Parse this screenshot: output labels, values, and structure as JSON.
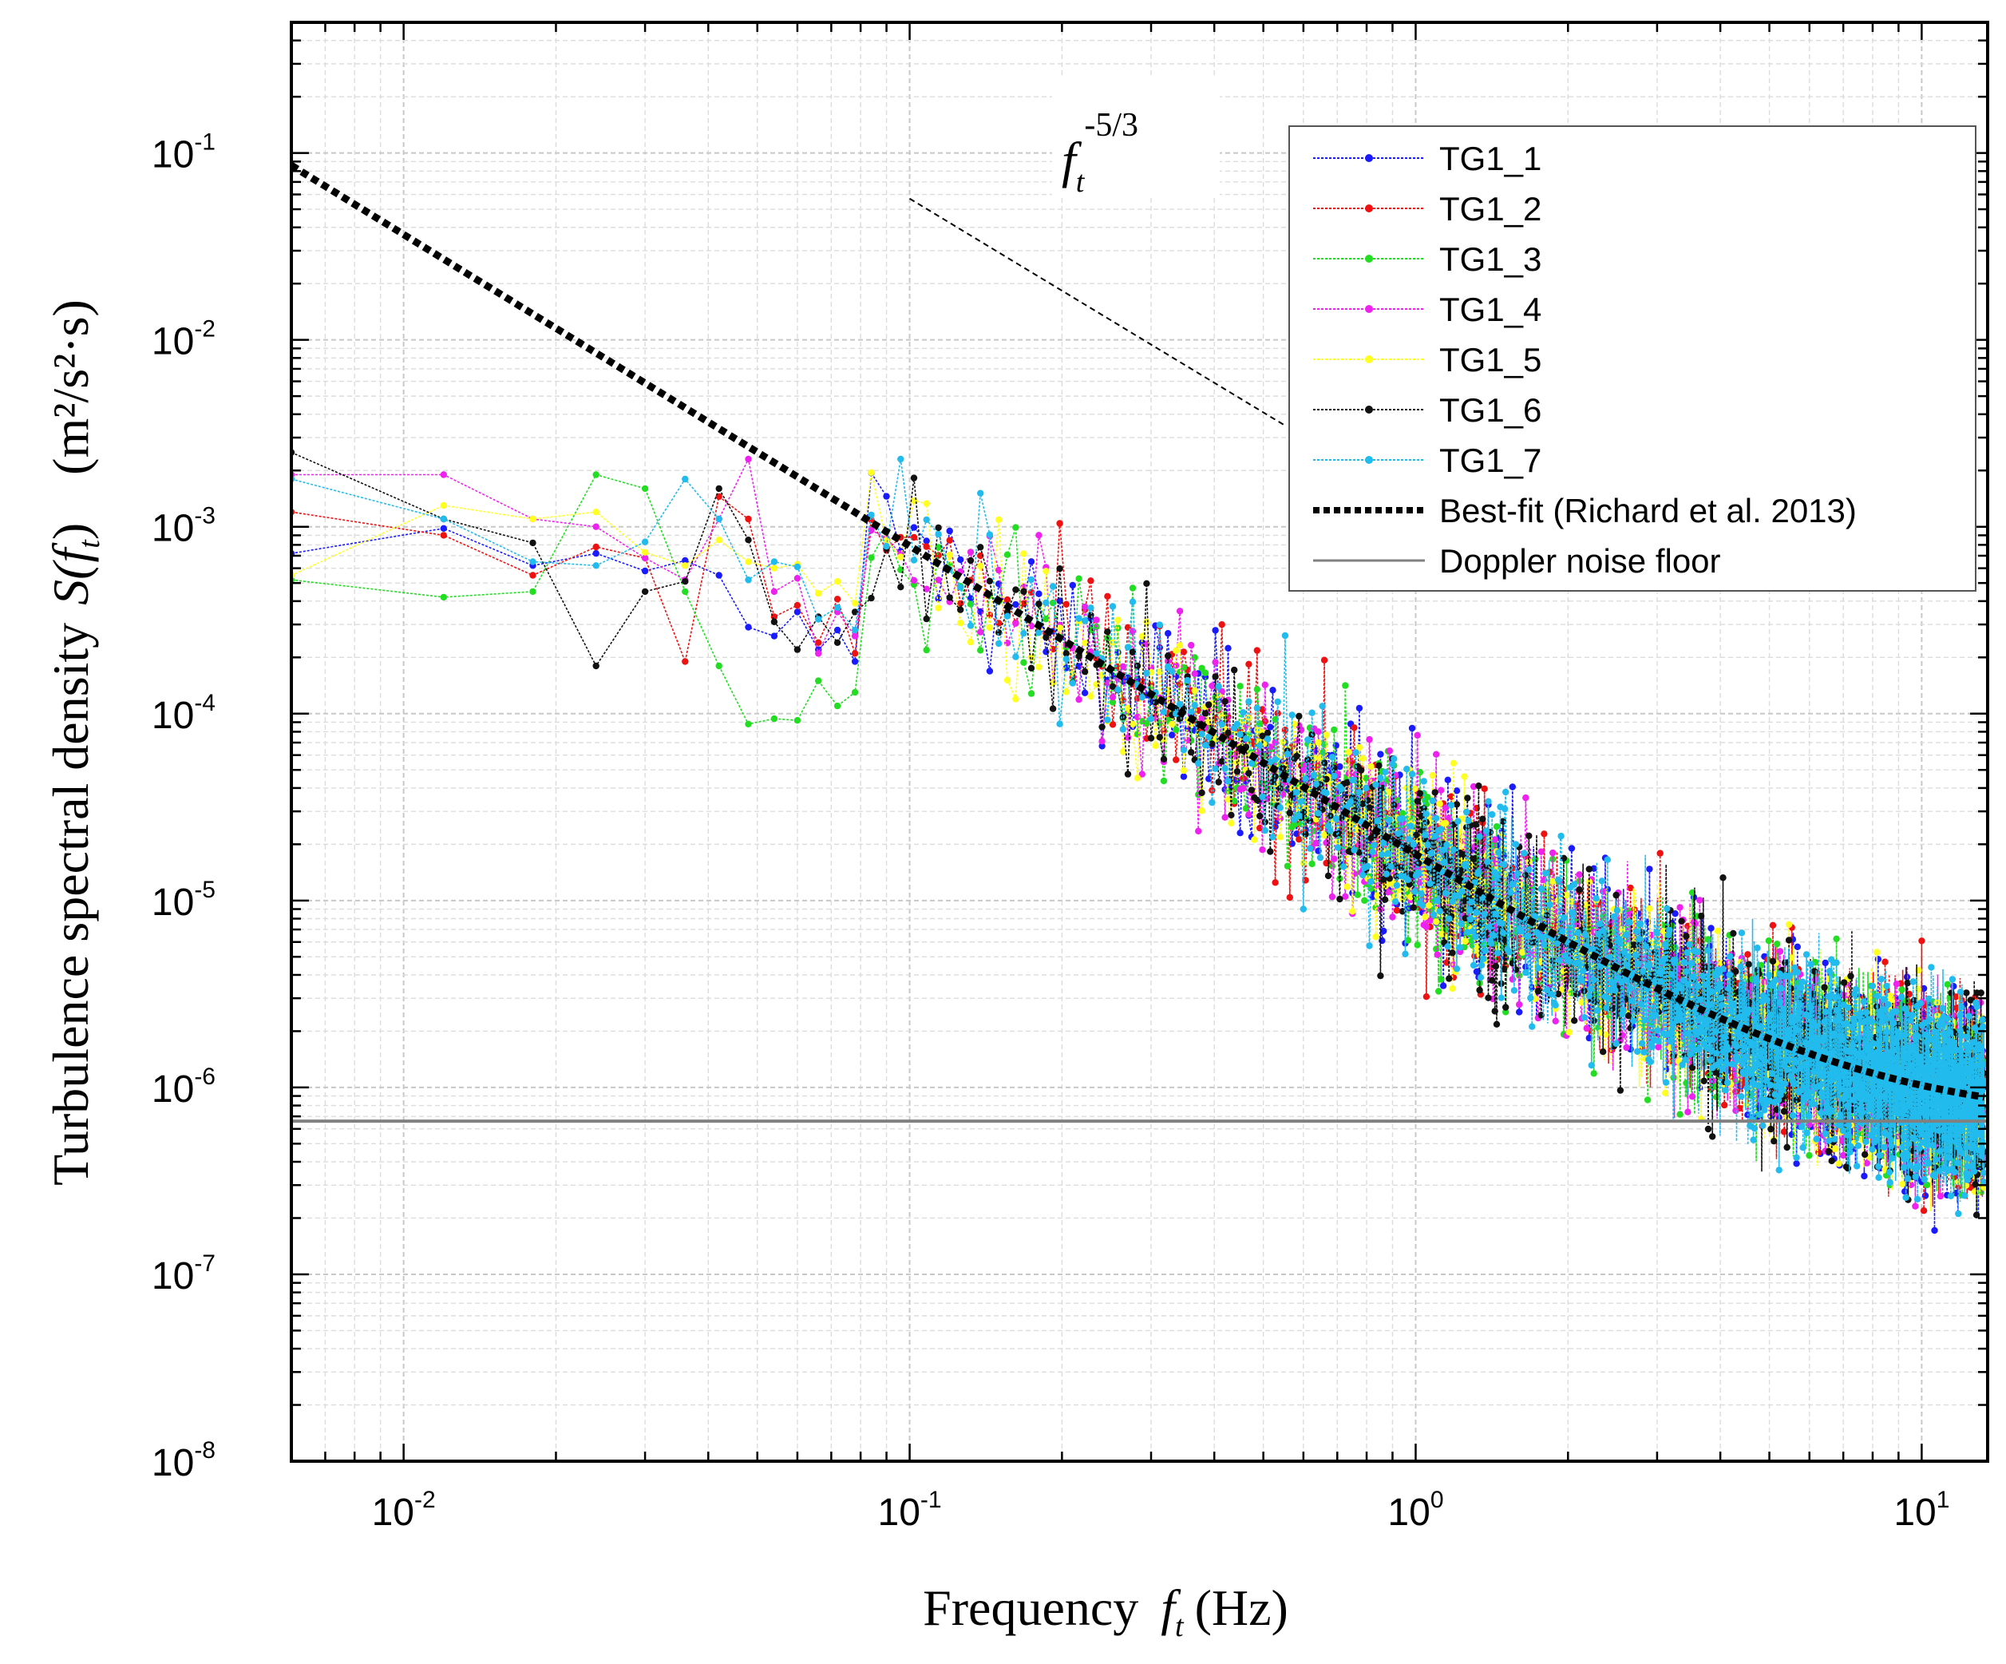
{
  "chart_data": {
    "type": "scatter",
    "x_scale": "log",
    "y_scale": "log",
    "xlim": [
      0.006,
      13.5
    ],
    "ylim": [
      1e-08,
      0.5
    ],
    "grid": true,
    "legend_position": "top-right",
    "x_ticks": [
      {
        "value": 0.01,
        "base": "10",
        "exp": "-2"
      },
      {
        "value": 0.1,
        "base": "10",
        "exp": "-1"
      },
      {
        "value": 1,
        "base": "10",
        "exp": "0"
      },
      {
        "value": 10,
        "base": "10",
        "exp": "1"
      }
    ],
    "y_ticks": [
      {
        "value": 0.1,
        "base": "10",
        "exp": "-1"
      },
      {
        "value": 0.01,
        "base": "10",
        "exp": "-2"
      },
      {
        "value": 0.001,
        "base": "10",
        "exp": "-3"
      },
      {
        "value": 0.0001,
        "base": "10",
        "exp": "-4"
      },
      {
        "value": 1e-05,
        "base": "10",
        "exp": "-5"
      },
      {
        "value": 1e-06,
        "base": "10",
        "exp": "-6"
      },
      {
        "value": 1e-07,
        "base": "10",
        "exp": "-7"
      },
      {
        "value": 1e-08,
        "base": "10",
        "exp": "-8"
      }
    ],
    "xlabel": {
      "word": "Frequency",
      "sym": "f",
      "sub": "t",
      "unit": "(Hz)"
    },
    "ylabel": {
      "word": "Turbulence spectral density",
      "sym": "S(f",
      "sub": "t",
      "close": ")",
      "unit": "(m²/s²·s)"
    },
    "annotation": {
      "base": "f",
      "sub": "t",
      "exp": "-5/3"
    },
    "reference_slope": {
      "slope": -1.6667,
      "x_start": 0.1,
      "y_start": 0.057,
      "x_end": 0.55,
      "y_end": 0.0035
    },
    "best_fit": {
      "name": "Best-fit (Richard et al. 2013)",
      "A": 1.7e-05,
      "n": 1.6667,
      "noise": 6.6e-07,
      "x_start": 0.006,
      "x_end": 13.3
    },
    "noise_floor": {
      "name": "Doppler noise floor",
      "value": 6.6e-07
    },
    "series": [
      {
        "name": "TG1_1",
        "color": "#1a1aff",
        "low_freq": [
          [
            0.006,
            0.00072
          ],
          [
            0.012,
            0.00098
          ],
          [
            0.018,
            0.00062
          ],
          [
            0.024,
            0.00072
          ],
          [
            0.03,
            0.00058
          ],
          [
            0.036,
            0.00066
          ],
          [
            0.042,
            0.00055
          ],
          [
            0.048,
            0.00029
          ],
          [
            0.054,
            0.00026
          ],
          [
            0.06,
            0.00035
          ],
          [
            0.066,
            0.00022
          ],
          [
            0.072,
            0.00028
          ],
          [
            0.078,
            0.00019
          ]
        ]
      },
      {
        "name": "TG1_2",
        "color": "#ee1111",
        "low_freq": [
          [
            0.006,
            0.0012
          ],
          [
            0.012,
            0.0009
          ],
          [
            0.018,
            0.00055
          ],
          [
            0.024,
            0.00078
          ],
          [
            0.03,
            0.00068
          ],
          [
            0.036,
            0.00019
          ],
          [
            0.042,
            0.00145
          ],
          [
            0.048,
            0.0011
          ],
          [
            0.054,
            0.00033
          ],
          [
            0.06,
            0.00038
          ],
          [
            0.066,
            0.00024
          ],
          [
            0.072,
            0.00041
          ],
          [
            0.078,
            0.00021
          ]
        ]
      },
      {
        "name": "TG1_3",
        "color": "#22dd22",
        "low_freq": [
          [
            0.006,
            0.00052
          ],
          [
            0.012,
            0.00042
          ],
          [
            0.018,
            0.00045
          ],
          [
            0.024,
            0.0019
          ],
          [
            0.03,
            0.0016
          ],
          [
            0.036,
            0.00045
          ],
          [
            0.042,
            0.00018
          ],
          [
            0.048,
            8.8e-05
          ],
          [
            0.054,
            9.4e-05
          ],
          [
            0.06,
            9.2e-05
          ],
          [
            0.066,
            0.00015
          ],
          [
            0.072,
            0.00011
          ],
          [
            0.078,
            0.00013
          ]
        ]
      },
      {
        "name": "TG1_4",
        "color": "#ee22ee",
        "low_freq": [
          [
            0.006,
            0.0019
          ],
          [
            0.012,
            0.0019
          ],
          [
            0.018,
            0.0011
          ],
          [
            0.024,
            0.001
          ],
          [
            0.03,
            0.00068
          ],
          [
            0.036,
            0.00052
          ],
          [
            0.042,
            0.0011
          ],
          [
            0.048,
            0.0023
          ],
          [
            0.054,
            0.00045
          ],
          [
            0.06,
            0.00053
          ],
          [
            0.066,
            0.00021
          ],
          [
            0.072,
            0.00035
          ],
          [
            0.078,
            0.00026
          ]
        ]
      },
      {
        "name": "TG1_5",
        "color": "#ffff22",
        "low_freq": [
          [
            0.006,
            0.00055
          ],
          [
            0.012,
            0.0013
          ],
          [
            0.018,
            0.0011
          ],
          [
            0.024,
            0.0012
          ],
          [
            0.03,
            0.00073
          ],
          [
            0.036,
            0.00062
          ],
          [
            0.042,
            0.00085
          ],
          [
            0.048,
            0.00065
          ],
          [
            0.054,
            0.0006
          ],
          [
            0.06,
            0.00063
          ],
          [
            0.066,
            0.00044
          ],
          [
            0.072,
            0.00051
          ],
          [
            0.078,
            0.00039
          ]
        ]
      },
      {
        "name": "TG1_6",
        "color": "#111111",
        "low_freq": [
          [
            0.006,
            0.0025
          ],
          [
            0.012,
            0.0011
          ],
          [
            0.018,
            0.00082
          ],
          [
            0.024,
            0.00018
          ],
          [
            0.03,
            0.00045
          ],
          [
            0.036,
            0.00051
          ],
          [
            0.042,
            0.0016
          ],
          [
            0.048,
            0.00085
          ],
          [
            0.054,
            0.00031
          ],
          [
            0.06,
            0.00022
          ],
          [
            0.066,
            0.00033
          ],
          [
            0.072,
            0.00024
          ],
          [
            0.078,
            0.00035
          ]
        ]
      },
      {
        "name": "TG1_7",
        "color": "#22bbee",
        "low_freq": [
          [
            0.006,
            0.0018
          ],
          [
            0.012,
            0.0011
          ],
          [
            0.018,
            0.00065
          ],
          [
            0.024,
            0.00062
          ],
          [
            0.03,
            0.00083
          ],
          [
            0.036,
            0.0018
          ],
          [
            0.042,
            0.0011
          ],
          [
            0.048,
            0.00052
          ],
          [
            0.054,
            0.00065
          ],
          [
            0.06,
            0.00061
          ],
          [
            0.066,
            0.00032
          ],
          [
            0.072,
            0.00037
          ],
          [
            0.078,
            0.00028
          ]
        ]
      }
    ]
  }
}
